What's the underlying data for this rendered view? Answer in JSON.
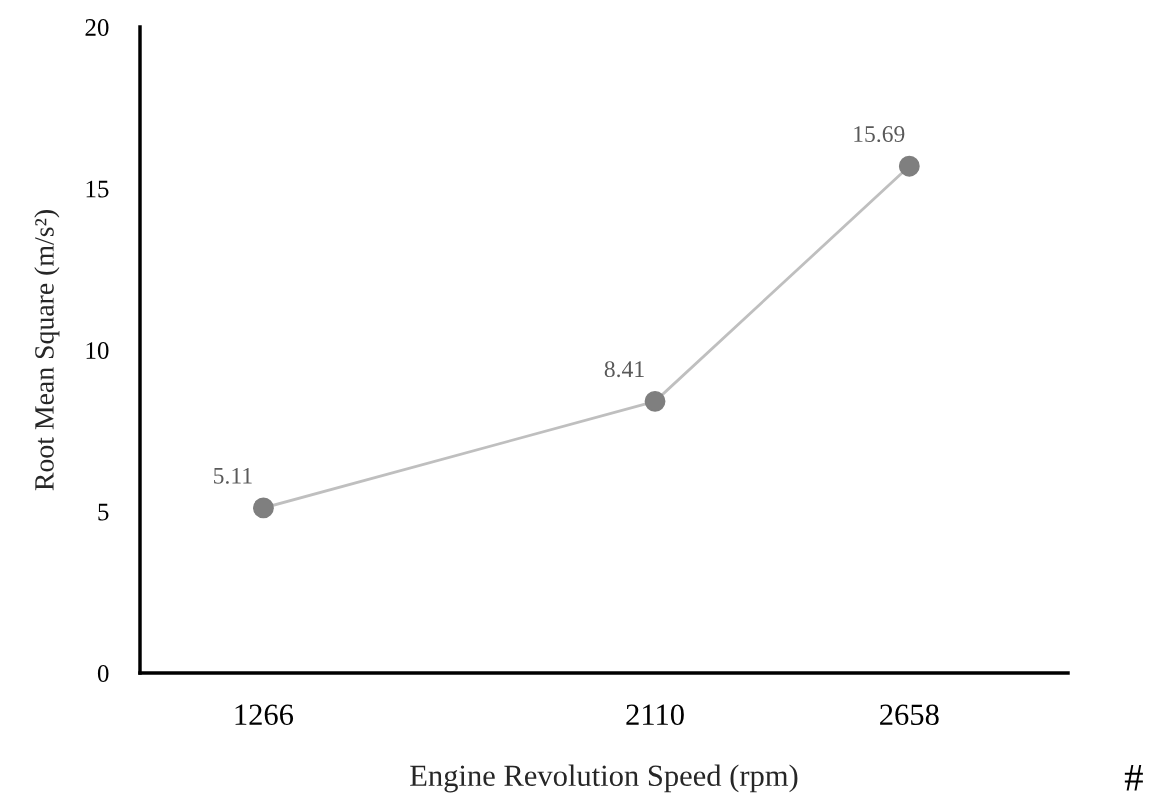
{
  "chart_data": {
    "type": "line",
    "x": [
      1266,
      2110,
      2658
    ],
    "series": [
      {
        "color": "#7f7f7f",
        "values": [
          5.11,
          8.41,
          15.69
        ]
      }
    ],
    "xlim": [
      1000,
      3000
    ],
    "xticks": [
      1266,
      2110,
      2658
    ],
    "ylim": [
      0,
      20
    ],
    "yticks": [
      0,
      5,
      10,
      15,
      20
    ],
    "xlabel": "Engine Revolution Speed (rpm)",
    "ylabel": "Root Mean Square (m/s²)",
    "data_labels": true,
    "marker": "circle",
    "line_style": "solid",
    "grid": false,
    "legend": false,
    "annotations": [
      "#"
    ]
  }
}
